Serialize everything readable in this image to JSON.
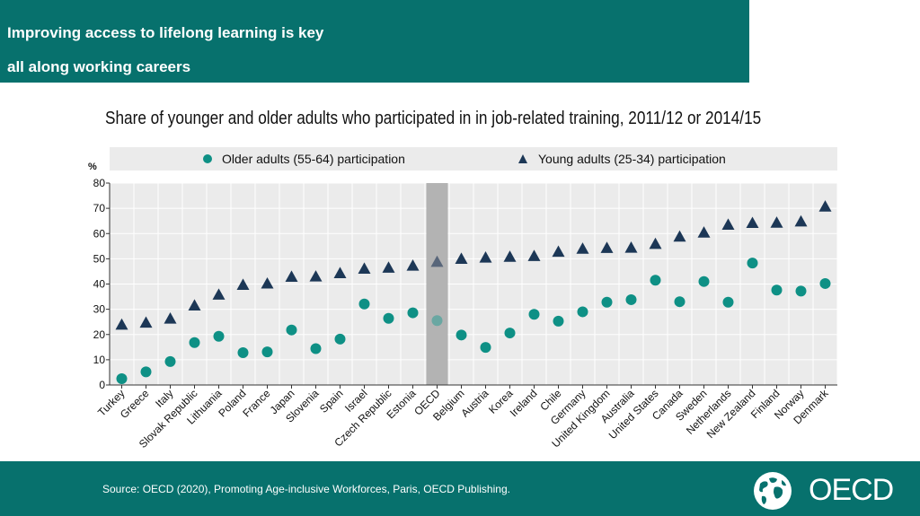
{
  "header": {
    "line1": "Improving access to lifelong learning is key",
    "line2": "all along working careers"
  },
  "chart_data": {
    "type": "scatter",
    "title": "Share of younger and older adults who participated in in job-related training, 2011/12 or 2014/15",
    "ylabel": "%",
    "ylim": [
      0,
      80
    ],
    "yticks": [
      0,
      10,
      20,
      30,
      40,
      50,
      60,
      70,
      80
    ],
    "grid": true,
    "legend_position": "top",
    "highlight_category": "OECD",
    "categories": [
      "Turkey",
      "Greece",
      "Italy",
      "Slovak Republic",
      "Lithuania",
      "Poland",
      "France",
      "Japan",
      "Slovenia",
      "Spain",
      "Israel",
      "Czech Republic",
      "Estonia",
      "OECD",
      "Belgium",
      "Austria",
      "Korea",
      "Ireland",
      "Chile",
      "Germany",
      "United Kingdom",
      "Australia",
      "United States",
      "Canada",
      "Sweden",
      "Netherlands",
      "New Zealand",
      "Finland",
      "Norway",
      "Denmark"
    ],
    "series": [
      {
        "name": "Older adults (55-64) participation",
        "marker": "circle",
        "color": "#0e9085",
        "values": [
          2.5,
          5.2,
          9.3,
          16.8,
          19.3,
          12.8,
          13.1,
          21.8,
          14.4,
          18.2,
          32.1,
          26.4,
          28.6,
          25.5,
          19.8,
          14.9,
          20.6,
          28.0,
          25.3,
          29.0,
          32.8,
          33.8,
          41.5,
          33.0,
          41.0,
          32.8,
          48.3,
          37.6,
          37.2,
          40.2
        ]
      },
      {
        "name": "Young adults (25-34) participation",
        "marker": "triangle",
        "color": "#1c3756",
        "values": [
          23.9,
          24.7,
          26.3,
          31.5,
          35.8,
          39.7,
          40.2,
          42.9,
          43.0,
          44.3,
          46.1,
          46.5,
          47.3,
          48.8,
          50.0,
          50.5,
          50.8,
          51.1,
          52.8,
          54.0,
          54.3,
          54.4,
          55.9,
          58.8,
          60.4,
          63.5,
          64.2,
          64.3,
          64.8,
          70.7
        ]
      }
    ]
  },
  "footer": {
    "source": "Source: OECD (2020), Promoting Age-inclusive Workforces, Paris, OECD Publishing.",
    "logo_text": "OECD"
  },
  "colors": {
    "brand": "#07716d",
    "older": "#0e9085",
    "young": "#1c3756",
    "oecd_older": "#6aa7a2",
    "oecd_young": "#58667a",
    "plot_bg": "#ebebeb",
    "highlight": "#b3b3b3"
  }
}
